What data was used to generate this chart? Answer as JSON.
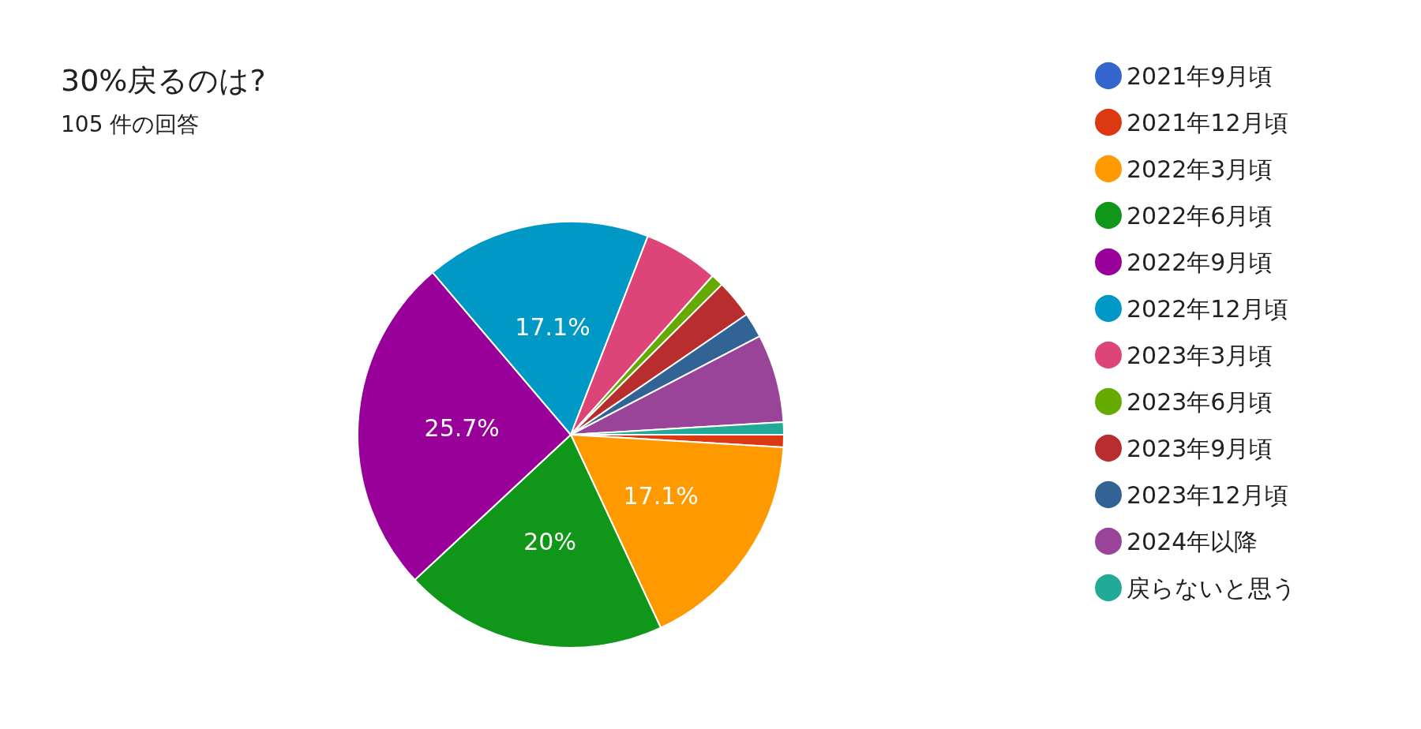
{
  "chart_data": {
    "type": "pie",
    "title": "30%戻るのは?",
    "subtitle": "105 件の回答",
    "categories": [
      "2021年9月頃",
      "2021年12月頃",
      "2022年3月頃",
      "2022年6月頃",
      "2022年9月頃",
      "2022年12月頃",
      "2023年3月頃",
      "2023年6月頃",
      "2023年9月頃",
      "2023年12月頃",
      "2024年以降",
      "戻らないと思う"
    ],
    "values": [
      0,
      0.95,
      17.1,
      20,
      25.7,
      17.1,
      5.7,
      0.95,
      2.9,
      1.9,
      6.7,
      0.95
    ],
    "value_labels": [
      null,
      null,
      "17.1%",
      "20%",
      "25.7%",
      "17.1%",
      null,
      null,
      null,
      null,
      null,
      null
    ],
    "colors": [
      "#3366cc",
      "#dc3912",
      "#ff9900",
      "#109618",
      "#990099",
      "#0099c6",
      "#dd4477",
      "#66aa00",
      "#b82e2e",
      "#316395",
      "#994499",
      "#22aa99"
    ],
    "legend": "right"
  }
}
